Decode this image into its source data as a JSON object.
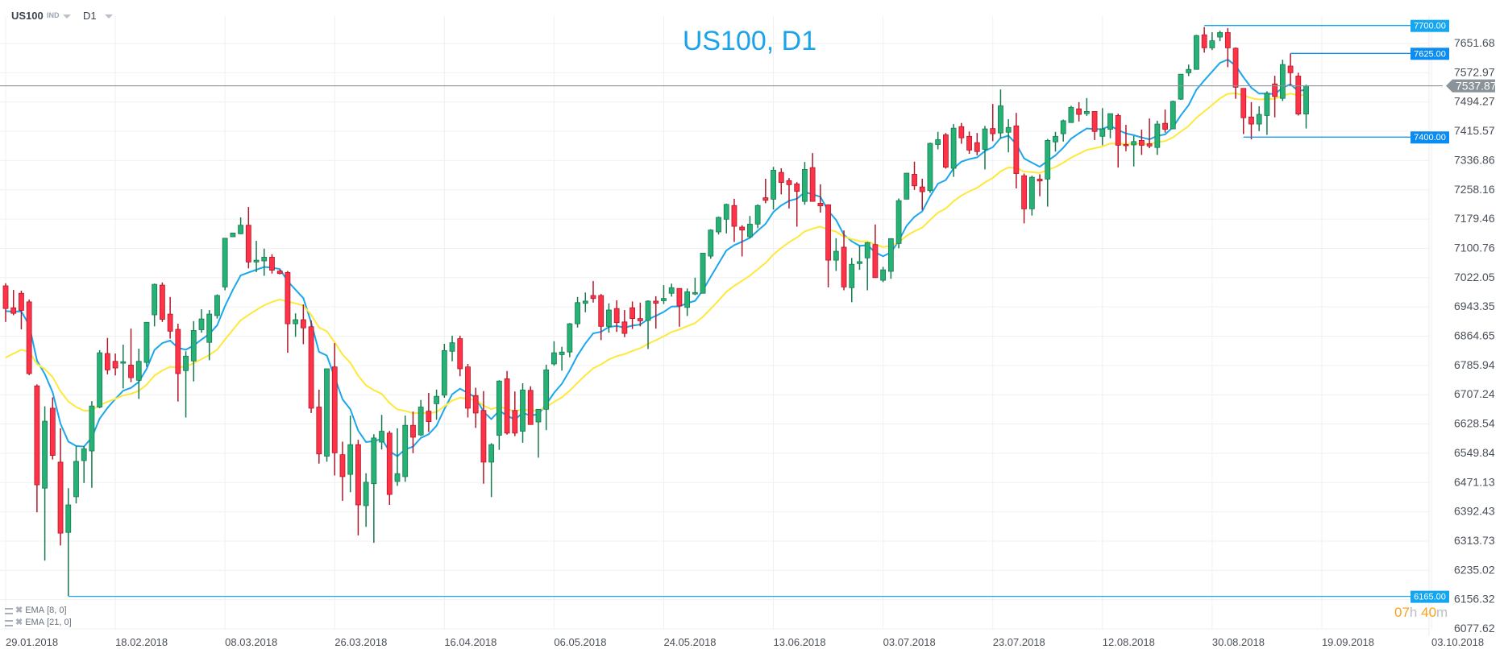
{
  "toolbar": {
    "symbol": "US100",
    "symbol_type": "IND",
    "timeframe": "D1"
  },
  "countdown": {
    "hours": "07",
    "hours_unit": "h",
    "minutes": "40",
    "minutes_unit": "m"
  },
  "legend": [
    {
      "label": "EMA",
      "params": "[8, 0]"
    },
    {
      "label": "EMA",
      "params": "[21, 0]"
    }
  ],
  "colors": {
    "up": "#26b276",
    "up_border": "#177a4e",
    "down": "#ff3347",
    "down_border": "#b0182a",
    "ema_fast": "#1aa7ee",
    "ema_slow": "#ffe83a",
    "title": "#1aa3e8",
    "level": "#0d94ee",
    "price_line": "#8a9399"
  },
  "chart_data": {
    "type": "candlestick",
    "title": "US100, D1",
    "ylim": [
      6077.62,
      7651.68
    ],
    "y_ticks": [
      "7651.68",
      "7572.97",
      "7494.27",
      "7415.57",
      "7336.86",
      "7258.16",
      "7179.46",
      "7100.76",
      "7022.05",
      "6943.35",
      "6864.65",
      "6785.94",
      "6707.24",
      "6628.54",
      "6549.84",
      "6471.13",
      "6392.43",
      "6313.73",
      "6235.02",
      "6156.32",
      "6077.62"
    ],
    "x_ticks": [
      "29.01.2018",
      "18.02.2018",
      "08.03.2018",
      "26.03.2018",
      "16.04.2018",
      "06.05.2018",
      "24.05.2018",
      "13.06.2018",
      "03.07.2018",
      "23.07.2018",
      "12.08.2018",
      "30.08.2018",
      "19.09.2018",
      "03.10.2018"
    ],
    "x_tick_every_bars": 14,
    "grid": true,
    "current_price": "7537.87",
    "levels": [
      {
        "label": "7700.00",
        "value": 7700,
        "from_bar": 153,
        "color": "#14a6f0"
      },
      {
        "label": "7625.00",
        "value": 7625,
        "from_bar": 164,
        "color": "#0a8cf0"
      },
      {
        "label": "7400.00",
        "value": 7400,
        "from_bar": 158,
        "color": "#0a8cf0"
      },
      {
        "label": "6165.00",
        "value": 6165,
        "from_bar": 8,
        "color": "#14a6f0"
      }
    ],
    "indicators": [
      {
        "name": "EMA 8",
        "period": 8,
        "seed": 6932,
        "color": "#1aa7ee"
      },
      {
        "name": "EMA 21",
        "period": 21,
        "seed": 6807,
        "color": "#ffe83a"
      }
    ],
    "ohlc": [
      [
        7000,
        7007,
        6903,
        6939
      ],
      [
        6941,
        6989,
        6921,
        6926
      ],
      [
        6980,
        6987,
        6883,
        6934
      ],
      [
        6957,
        6963,
        6760,
        6764
      ],
      [
        6731,
        6735,
        6391,
        6465
      ],
      [
        6456,
        6676,
        6261,
        6636
      ],
      [
        6671,
        6700,
        6533,
        6544
      ],
      [
        6526,
        6617,
        6302,
        6335
      ],
      [
        6337,
        6456,
        6166,
        6411
      ],
      [
        6433,
        6569,
        6415,
        6528
      ],
      [
        6530,
        6569,
        6470,
        6562
      ],
      [
        6556,
        6690,
        6457,
        6677
      ],
      [
        6674,
        6827,
        6671,
        6820
      ],
      [
        6818,
        6860,
        6762,
        6774
      ],
      [
        6797,
        6818,
        6759,
        6779
      ],
      [
        6792,
        6842,
        6724,
        6796
      ],
      [
        6787,
        6885,
        6741,
        6753
      ],
      [
        6746,
        6831,
        6696,
        6797
      ],
      [
        6794,
        6902,
        6782,
        6902
      ],
      [
        6922,
        7006,
        6891,
        7004
      ],
      [
        7002,
        7009,
        6903,
        6910
      ],
      [
        6924,
        6970,
        6858,
        6878
      ],
      [
        6883,
        6898,
        6689,
        6764
      ],
      [
        6772,
        6824,
        6646,
        6811
      ],
      [
        6798,
        6905,
        6743,
        6880
      ],
      [
        6882,
        6937,
        6874,
        6911
      ],
      [
        6848,
        6935,
        6800,
        6924
      ],
      [
        6920,
        6977,
        6912,
        6974
      ],
      [
        6997,
        7128,
        6988,
        7128
      ],
      [
        7132,
        7142,
        7131,
        7142
      ],
      [
        7140,
        7184,
        7139,
        7163
      ],
      [
        7163,
        7212,
        7047,
        7064
      ],
      [
        7064,
        7121,
        7037,
        7069
      ],
      [
        7067,
        7100,
        7027,
        7077
      ],
      [
        7077,
        7085,
        7033,
        7042
      ],
      [
        7040,
        7043,
        7031,
        7033
      ],
      [
        7036,
        7040,
        6820,
        6898
      ],
      [
        6898,
        6926,
        6863,
        6909
      ],
      [
        6909,
        6950,
        6843,
        6887
      ],
      [
        6890,
        6907,
        6658,
        6671
      ],
      [
        6674,
        6721,
        6522,
        6548
      ],
      [
        6542,
        6777,
        6527,
        6777
      ],
      [
        6782,
        6846,
        6490,
        6551
      ],
      [
        6546,
        6581,
        6422,
        6487
      ],
      [
        6493,
        6651,
        6445,
        6573
      ],
      [
        6573,
        6586,
        6329,
        6411
      ],
      [
        6409,
        6496,
        6352,
        6472
      ],
      [
        6468,
        6601,
        6309,
        6591
      ],
      [
        6580,
        6653,
        6560,
        6609
      ],
      [
        6604,
        6610,
        6411,
        6439
      ],
      [
        6474,
        6617,
        6462,
        6495
      ],
      [
        6487,
        6651,
        6473,
        6625
      ],
      [
        6625,
        6662,
        6550,
        6593
      ],
      [
        6599,
        6693,
        6596,
        6674
      ],
      [
        6663,
        6712,
        6607,
        6635
      ],
      [
        6683,
        6721,
        6640,
        6703
      ],
      [
        6706,
        6844,
        6699,
        6826
      ],
      [
        6824,
        6866,
        6797,
        6847
      ],
      [
        6858,
        6866,
        6757,
        6777
      ],
      [
        6782,
        6790,
        6646,
        6671
      ],
      [
        6705,
        6726,
        6618,
        6658
      ],
      [
        6665,
        6717,
        6468,
        6526
      ],
      [
        6526,
        6577,
        6432,
        6573
      ],
      [
        6598,
        6746,
        6559,
        6744
      ],
      [
        6750,
        6771,
        6600,
        6604
      ],
      [
        6665,
        6716,
        6596,
        6604
      ],
      [
        6609,
        6738,
        6578,
        6720
      ],
      [
        6719,
        6730,
        6627,
        6627
      ],
      [
        6634,
        6668,
        6538,
        6668
      ],
      [
        6668,
        6788,
        6612,
        6774
      ],
      [
        6790,
        6851,
        6785,
        6820
      ],
      [
        6815,
        6836,
        6772,
        6822
      ],
      [
        6822,
        6900,
        6808,
        6898
      ],
      [
        6898,
        6970,
        6888,
        6955
      ],
      [
        6953,
        6982,
        6929,
        6959
      ],
      [
        6974,
        7013,
        6955,
        6966
      ],
      [
        6974,
        6978,
        6854,
        6891
      ],
      [
        6891,
        6953,
        6874,
        6935
      ],
      [
        6939,
        6961,
        6876,
        6901
      ],
      [
        6903,
        6935,
        6862,
        6872
      ],
      [
        6941,
        6958,
        6884,
        6912
      ],
      [
        6912,
        6955,
        6891,
        6906
      ],
      [
        6907,
        6961,
        6830,
        6959
      ],
      [
        6959,
        6972,
        6885,
        6953
      ],
      [
        6960,
        7002,
        6951,
        6966
      ],
      [
        6980,
        7006,
        6971,
        6995
      ],
      [
        6993,
        6993,
        6890,
        6946
      ],
      [
        6942,
        6993,
        6919,
        6984
      ],
      [
        6978,
        7022,
        6975,
        6982
      ],
      [
        6980,
        7088,
        6980,
        7088
      ],
      [
        7080,
        7152,
        7073,
        7150
      ],
      [
        7145,
        7186,
        7138,
        7184
      ],
      [
        7179,
        7221,
        7141,
        7219
      ],
      [
        7216,
        7234,
        7118,
        7160
      ],
      [
        7158,
        7163,
        7079,
        7150
      ],
      [
        7132,
        7188,
        7128,
        7166
      ],
      [
        7166,
        7219,
        7155,
        7216
      ],
      [
        7237,
        7288,
        7222,
        7230
      ],
      [
        7233,
        7320,
        7205,
        7311
      ],
      [
        7305,
        7316,
        7246,
        7278
      ],
      [
        7283,
        7290,
        7208,
        7272
      ],
      [
        7274,
        7279,
        7159,
        7254
      ],
      [
        7227,
        7333,
        7218,
        7313
      ],
      [
        7318,
        7357,
        7227,
        7227
      ],
      [
        7222,
        7273,
        7197,
        7215
      ],
      [
        7218,
        7219,
        6996,
        7069
      ],
      [
        7069,
        7128,
        7040,
        7093
      ],
      [
        7104,
        7149,
        6988,
        6997
      ],
      [
        6995,
        7075,
        6956,
        7058
      ],
      [
        7060,
        7108,
        7043,
        7065
      ],
      [
        7075,
        7118,
        6988,
        7116
      ],
      [
        7111,
        7165,
        7022,
        7022
      ],
      [
        7015,
        7051,
        7010,
        7043
      ],
      [
        7039,
        7128,
        7019,
        7127
      ],
      [
        7114,
        7235,
        7101,
        7229
      ],
      [
        7233,
        7303,
        7233,
        7303
      ],
      [
        7300,
        7334,
        7258,
        7269
      ],
      [
        7266,
        7288,
        7204,
        7253
      ],
      [
        7256,
        7385,
        7250,
        7383
      ],
      [
        7380,
        7414,
        7367,
        7393
      ],
      [
        7406,
        7411,
        7315,
        7319
      ],
      [
        7316,
        7435,
        7293,
        7424
      ],
      [
        7428,
        7438,
        7382,
        7398
      ],
      [
        7402,
        7415,
        7355,
        7365
      ],
      [
        7385,
        7411,
        7351,
        7361
      ],
      [
        7367,
        7430,
        7313,
        7422
      ],
      [
        7423,
        7489,
        7389,
        7409
      ],
      [
        7411,
        7528,
        7396,
        7484
      ],
      [
        7413,
        7448,
        7359,
        7426
      ],
      [
        7430,
        7465,
        7262,
        7302
      ],
      [
        7296,
        7302,
        7168,
        7207
      ],
      [
        7207,
        7296,
        7189,
        7292
      ],
      [
        7287,
        7300,
        7241,
        7282
      ],
      [
        7287,
        7395,
        7213,
        7391
      ],
      [
        7387,
        7414,
        7361,
        7402
      ],
      [
        7409,
        7447,
        7388,
        7444
      ],
      [
        7439,
        7484,
        7439,
        7480
      ],
      [
        7476,
        7494,
        7442,
        7461
      ],
      [
        7463,
        7505,
        7457,
        7469
      ],
      [
        7469,
        7469,
        7392,
        7415
      ],
      [
        7402,
        7478,
        7378,
        7422
      ],
      [
        7421,
        7463,
        7397,
        7463
      ],
      [
        7458,
        7463,
        7318,
        7378
      ],
      [
        7380,
        7433,
        7362,
        7378
      ],
      [
        7379,
        7403,
        7321,
        7388
      ],
      [
        7391,
        7420,
        7352,
        7378
      ],
      [
        7382,
        7450,
        7370,
        7376
      ],
      [
        7372,
        7444,
        7352,
        7435
      ],
      [
        7437,
        7474,
        7412,
        7421
      ],
      [
        7422,
        7498,
        7422,
        7496
      ],
      [
        7502,
        7569,
        7500,
        7569
      ],
      [
        7573,
        7595,
        7564,
        7582
      ],
      [
        7582,
        7675,
        7582,
        7673
      ],
      [
        7675,
        7696,
        7627,
        7640
      ],
      [
        7640,
        7682,
        7634,
        7659
      ],
      [
        7669,
        7686,
        7658,
        7681
      ],
      [
        7681,
        7693,
        7588,
        7640
      ],
      [
        7639,
        7641,
        7503,
        7534
      ],
      [
        7531,
        7531,
        7408,
        7452
      ],
      [
        7454,
        7494,
        7394,
        7435
      ],
      [
        7435,
        7483,
        7416,
        7461
      ],
      [
        7458,
        7523,
        7406,
        7518
      ],
      [
        7543,
        7565,
        7453,
        7509
      ],
      [
        7504,
        7608,
        7497,
        7595
      ],
      [
        7591,
        7625,
        7540,
        7573
      ],
      [
        7564,
        7573,
        7458,
        7462
      ],
      [
        7462,
        7541,
        7423,
        7538
      ]
    ]
  }
}
